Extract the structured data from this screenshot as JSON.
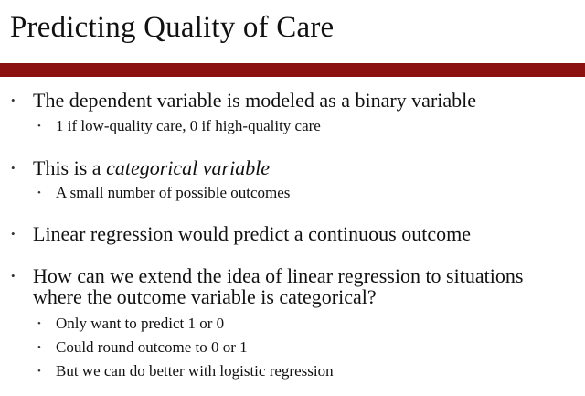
{
  "slide": {
    "title": "Predicting Quality of Care",
    "accent_color": "#8b1010",
    "bullet_glyph": "•",
    "bullets": [
      {
        "text": "The dependent variable is modeled as a binary variable",
        "sub": [
          "1 if low-quality care, 0 if high-quality care"
        ]
      },
      {
        "text_prefix": "This is a ",
        "text_emphasis": "categorical variable",
        "sub": [
          "A small number of possible outcomes"
        ]
      },
      {
        "text": "Linear regression would predict a continuous outcome",
        "sub": []
      },
      {
        "text_line1": "How can we extend the idea of linear regression to situations",
        "text_line2": "where the outcome variable is categorical?",
        "sub": [
          "Only want to predict 1 or 0",
          "Could round outcome to 0 or 1",
          "But we can do better with logistic regression"
        ]
      }
    ]
  }
}
